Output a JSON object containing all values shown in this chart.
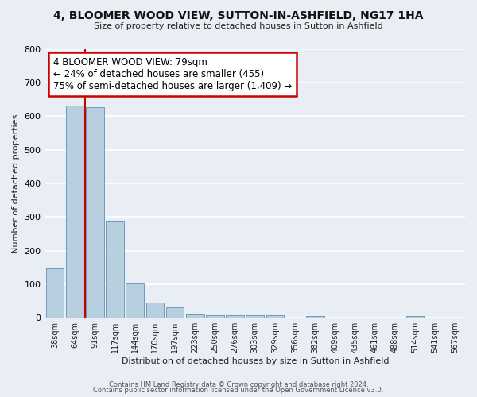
{
  "title": "4, BLOOMER WOOD VIEW, SUTTON-IN-ASHFIELD, NG17 1HA",
  "subtitle": "Size of property relative to detached houses in Sutton in Ashfield",
  "xlabel": "Distribution of detached houses by size in Sutton in Ashfield",
  "ylabel": "Number of detached properties",
  "bar_color": "#b8cfe0",
  "bar_edge_color": "#4a80aa",
  "categories": [
    "38sqm",
    "64sqm",
    "91sqm",
    "117sqm",
    "144sqm",
    "170sqm",
    "197sqm",
    "223sqm",
    "250sqm",
    "276sqm",
    "303sqm",
    "329sqm",
    "356sqm",
    "382sqm",
    "409sqm",
    "435sqm",
    "461sqm",
    "488sqm",
    "514sqm",
    "541sqm",
    "567sqm"
  ],
  "values": [
    148,
    632,
    627,
    288,
    103,
    46,
    31,
    10,
    7,
    8,
    7,
    7,
    0,
    5,
    0,
    0,
    0,
    0,
    5,
    0,
    0
  ],
  "ylim": [
    0,
    800
  ],
  "yticks": [
    0,
    100,
    200,
    300,
    400,
    500,
    600,
    700,
    800
  ],
  "property_line_x": 1.5,
  "annotation_title": "4 BLOOMER WOOD VIEW: 79sqm",
  "annotation_line1": "← 24% of detached houses are smaller (455)",
  "annotation_line2": "75% of semi-detached houses are larger (1,409) →",
  "annotation_box_color": "#ffffff",
  "annotation_box_edge": "#cc0000",
  "vline_color": "#cc0000",
  "footer1": "Contains HM Land Registry data © Crown copyright and database right 2024.",
  "footer2": "Contains public sector information licensed under the Open Government Licence v3.0.",
  "background_color": "#e8eef4",
  "plot_bg_color": "#e8eef4",
  "grid_color": "#ffffff"
}
